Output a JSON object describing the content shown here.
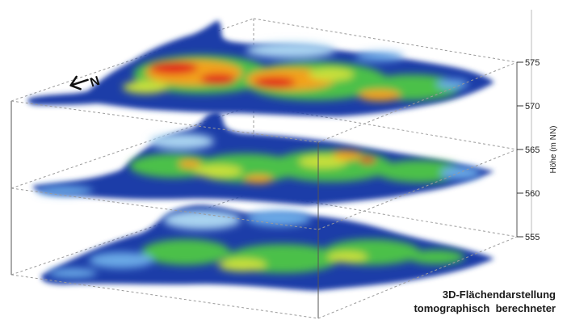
{
  "figure": {
    "axis": {
      "title": "Höhe (m NN)",
      "ticks": [
        "575",
        "570",
        "565",
        "560",
        "555"
      ]
    },
    "north_arrow": {
      "label": "N"
    },
    "caption": {
      "line1": "3D-Flächendarstellung",
      "line2": "tomographisch  berechneter"
    },
    "slices": [
      {
        "level": "575",
        "position": "top"
      },
      {
        "level": "565",
        "position": "middle"
      },
      {
        "level": "555",
        "position": "bottom"
      }
    ],
    "colors": {
      "low": "#1e3ea8",
      "mid_low": "#6aa9e6",
      "light": "#a9d3f0",
      "mid": "#4cc04a",
      "mid_high": "#c8e03a",
      "high": "#f2a21a",
      "max": "#e2231a",
      "box_line": "#9a9a9a"
    }
  }
}
